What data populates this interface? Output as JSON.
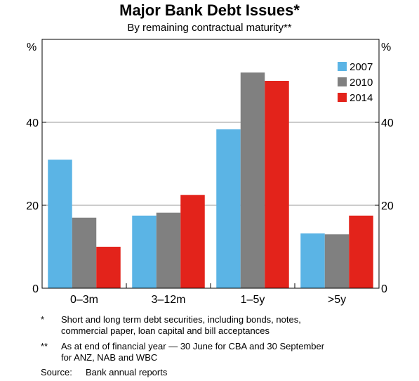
{
  "chart_data": {
    "type": "bar",
    "title": "Major Bank Debt Issues*",
    "subtitle": "By remaining contractual maturity**",
    "ylabel_left": "%",
    "ylabel_right": "%",
    "ylim": [
      0,
      60
    ],
    "yticks": [
      0,
      20,
      40
    ],
    "grid": true,
    "legend_position": "top-right",
    "categories": [
      "0–3m",
      "3–12m",
      "1–5y",
      ">5y"
    ],
    "series": [
      {
        "name": "2007",
        "color": "#5bb4e5",
        "values": [
          31,
          17.5,
          38.3,
          13.2
        ]
      },
      {
        "name": "2010",
        "color": "#808080",
        "values": [
          17,
          18.2,
          52,
          13
        ]
      },
      {
        "name": "2014",
        "color": "#e3231b",
        "values": [
          10,
          22.5,
          50,
          17.5
        ]
      }
    ]
  },
  "footnotes": [
    {
      "mark": "*",
      "text": [
        "Short and long term debt securities, including bonds, notes,",
        "commercial paper, loan capital and bill acceptances"
      ]
    },
    {
      "mark": "**",
      "text": [
        "As at end of financial year — 30 June for CBA and 30 September",
        "for ANZ, NAB and WBC"
      ]
    }
  ],
  "source": {
    "label": "Source:",
    "text": "Bank annual reports"
  }
}
